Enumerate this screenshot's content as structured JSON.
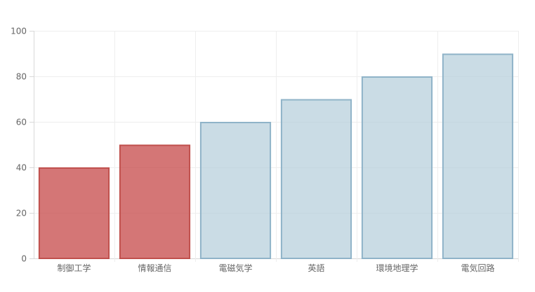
{
  "chart_data": {
    "type": "bar",
    "categories": [
      "制御工学",
      "情報通信",
      "電磁気学",
      "英語",
      "環境地理学",
      "電気回路"
    ],
    "values": [
      40,
      50,
      60,
      70,
      80,
      90
    ],
    "ylim": [
      0,
      100
    ],
    "yticks": [
      0,
      20,
      40,
      60,
      80,
      100
    ],
    "grid": true,
    "legend": "none",
    "bar_colors": {
      "highlight_fill": "rgba(200, 80, 80, 0.78)",
      "highlight_stroke": "#c0504d",
      "normal_fill": "rgba(180, 205, 218, 0.70)",
      "normal_stroke": "#8fb3c8"
    },
    "highlighted_categories": [
      "制御工学",
      "情報通信"
    ]
  }
}
